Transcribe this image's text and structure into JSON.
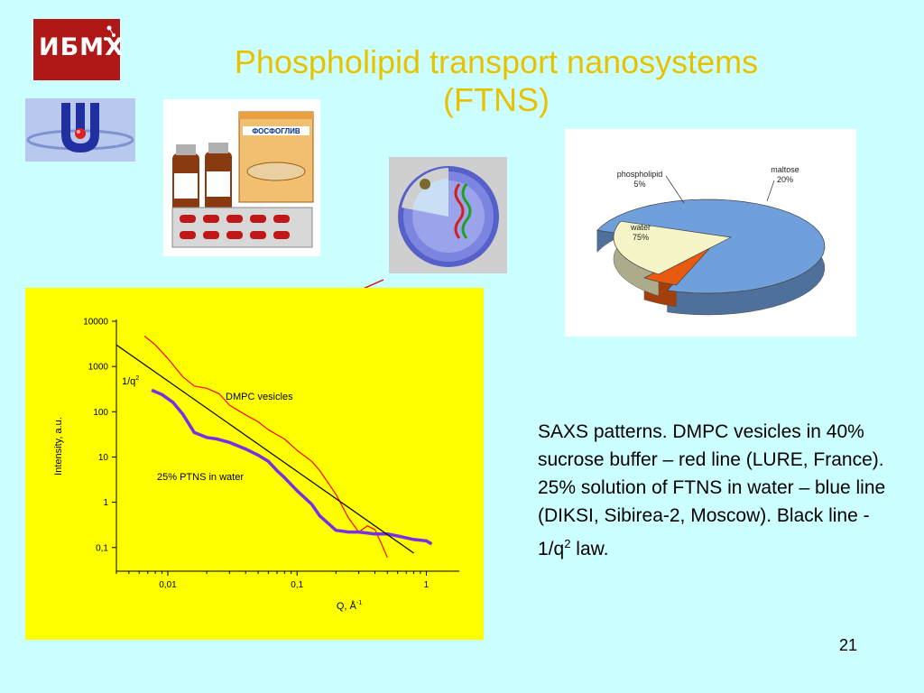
{
  "slide": {
    "title_line1": "Phospholipid transport nanosystems",
    "title_line2": "(FTNS)",
    "logo_text": "ИБМХ",
    "product_box_text": "ФОСФОГЛИВ",
    "description_part1": "SAXS patterns. DMPC vesicles in 40% sucrose buffer – red line (LURE, France). 25% solution of FTNS in water – blue line (DIKSI, Sibirea-2, Moscow). Black line - 1/q",
    "description_sup": "2",
    "description_part2": " law.",
    "slide_number": "21",
    "colors": {
      "background": "#ccffff",
      "title": "#e8c200",
      "chart_bg": "#ffff00"
    }
  },
  "chart_data": [
    {
      "type": "pie",
      "slices": [
        {
          "label": "water",
          "value": 75,
          "value_label": "75%",
          "color": "#6fa0dc"
        },
        {
          "label": "phospholipid",
          "value": 5,
          "value_label": "5%",
          "color": "#e85a10"
        },
        {
          "label": "maltose",
          "value": 20,
          "value_label": "20%",
          "color": "#f5f5c8"
        }
      ]
    },
    {
      "type": "line",
      "xlabel": "Q, Å",
      "xlabel_sup": "-1",
      "ylabel": "Intensity, a.u.",
      "x_scale": "log",
      "y_scale": "log",
      "xlim": [
        0.004,
        1.8
      ],
      "ylim": [
        0.03,
        10000
      ],
      "x_ticks": [
        0.01,
        0.1,
        1
      ],
      "x_tick_labels": [
        "0,01",
        "0,1",
        "1"
      ],
      "y_ticks": [
        0.1,
        1,
        10,
        100,
        1000,
        10000
      ],
      "y_tick_labels": [
        "0,1",
        "1",
        "10",
        "100",
        "1000",
        "10000"
      ],
      "annotations": [
        "DMPC vesicles",
        "25% PTNS in water"
      ],
      "law_label": "1/q",
      "law_label_sup": "2",
      "series": [
        {
          "name": "DMPC vesicles",
          "color": "#ff0000",
          "x": [
            0.0066,
            0.008,
            0.01,
            0.013,
            0.016,
            0.02,
            0.025,
            0.03,
            0.04,
            0.05,
            0.06,
            0.08,
            0.1,
            0.13,
            0.15,
            0.2,
            0.25,
            0.3,
            0.35,
            0.4,
            0.45,
            0.5
          ],
          "y": [
            4700,
            3000,
            1500,
            600,
            370,
            330,
            250,
            140,
            85,
            60,
            40,
            25,
            14,
            8,
            5,
            1.5,
            0.45,
            0.22,
            0.3,
            0.25,
            0.12,
            0.06
          ]
        },
        {
          "name": "25% PTNS in water",
          "color": "#7a2ee6",
          "x": [
            0.0075,
            0.009,
            0.011,
            0.013,
            0.016,
            0.02,
            0.024,
            0.03,
            0.04,
            0.05,
            0.06,
            0.07,
            0.08,
            0.1,
            0.13,
            0.15,
            0.2,
            0.25,
            0.3,
            0.4,
            0.5,
            0.6,
            0.8,
            1.0,
            1.1
          ],
          "y": [
            300,
            240,
            160,
            90,
            35,
            27,
            25,
            21,
            15,
            11,
            8,
            5,
            3.5,
            1.8,
            0.9,
            0.5,
            0.24,
            0.22,
            0.22,
            0.2,
            0.2,
            0.18,
            0.15,
            0.14,
            0.12
          ]
        },
        {
          "name": "1/q2 law",
          "color": "#000000",
          "x": [
            0.004,
            0.8
          ],
          "y": [
            3000,
            0.075
          ]
        }
      ]
    }
  ]
}
